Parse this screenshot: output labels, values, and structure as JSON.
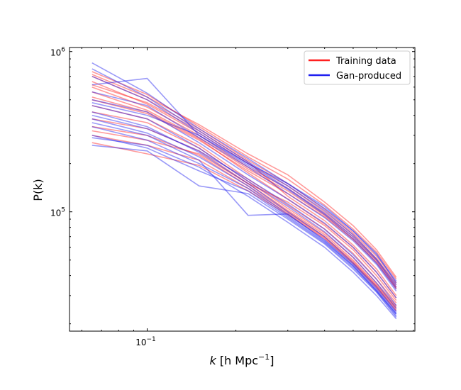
{
  "chart_data": {
    "type": "line",
    "title": "",
    "xlabel": "k [h Mpc^-1]",
    "xlabel_parts": {
      "var": "k",
      "unit_base": " [h Mpc",
      "unit_exp": "−1",
      "unit_close": "]"
    },
    "ylabel": "P(k)",
    "xscale": "log",
    "yscale": "log",
    "xlim": [
      0.0545,
      0.81
    ],
    "ylim": [
      18000,
      1060000
    ],
    "x_ticks": [
      {
        "base": "10",
        "exp": "−1",
        "value": 0.1
      }
    ],
    "y_ticks": [
      {
        "base": "10",
        "exp": "5",
        "value": 100000
      },
      {
        "base": "10",
        "exp": "6",
        "value": 1000000
      }
    ],
    "grid": false,
    "legend": {
      "placement": "top-right",
      "entries": [
        {
          "name": "Training data",
          "color": "#ff2020"
        },
        {
          "name": "Gan-produced",
          "color": "#1f1ff0"
        }
      ]
    },
    "x": [
      0.065,
      0.1,
      0.15,
      0.22,
      0.3,
      0.4,
      0.5,
      0.6,
      0.7
    ],
    "series": [
      {
        "group": "Training data",
        "color": "#ff2020",
        "values": [
          750000,
          540000,
          340000,
          220000,
          160000,
          110000,
          78000,
          56000,
          38000
        ]
      },
      {
        "group": "Training data",
        "color": "#ff2020",
        "values": [
          700000,
          500000,
          330000,
          210000,
          150000,
          104000,
          74000,
          53000,
          36000
        ]
      },
      {
        "group": "Training data",
        "color": "#ff2020",
        "values": [
          650000,
          470000,
          310000,
          200000,
          145000,
          100000,
          72000,
          51000,
          35000
        ]
      },
      {
        "group": "Training data",
        "color": "#ff2020",
        "values": [
          600000,
          450000,
          300000,
          190000,
          140000,
          97000,
          70000,
          50000,
          34000
        ]
      },
      {
        "group": "Training data",
        "color": "#ff2020",
        "values": [
          560000,
          430000,
          290000,
          185000,
          135000,
          95000,
          68000,
          49000,
          33500
        ]
      },
      {
        "group": "Training data",
        "color": "#ff2020",
        "values": [
          500000,
          410000,
          280000,
          180000,
          130000,
          93000,
          67000,
          48000,
          33000
        ]
      },
      {
        "group": "Training data",
        "color": "#ff2020",
        "values": [
          460000,
          380000,
          260000,
          160000,
          110000,
          78000,
          55000,
          38000,
          27000
        ]
      },
      {
        "group": "Training data",
        "color": "#ff2020",
        "values": [
          420000,
          360000,
          250000,
          155000,
          105000,
          74000,
          52000,
          36000,
          26000
        ]
      },
      {
        "group": "Training data",
        "color": "#ff2020",
        "values": [
          380000,
          330000,
          240000,
          150000,
          102000,
          72000,
          50000,
          35000,
          25500
        ]
      },
      {
        "group": "Training data",
        "color": "#ff2020",
        "values": [
          340000,
          300000,
          225000,
          145000,
          100000,
          70000,
          49000,
          34500,
          25000
        ]
      },
      {
        "group": "Training data",
        "color": "#ff2020",
        "values": [
          300000,
          260000,
          210000,
          140000,
          98000,
          69000,
          48000,
          34000,
          24500
        ]
      },
      {
        "group": "Training data",
        "color": "#ff2020",
        "values": [
          270000,
          230000,
          195000,
          135000,
          96000,
          68000,
          47500,
          33500,
          24000
        ]
      },
      {
        "group": "Training data",
        "color": "#ff2020",
        "values": [
          720000,
          520000,
          350000,
          230000,
          170000,
          115000,
          82000,
          58000,
          39000
        ]
      },
      {
        "group": "Training data",
        "color": "#ff2020",
        "values": [
          620000,
          480000,
          320000,
          205000,
          125000,
          88000,
          62000,
          44000,
          30000
        ]
      },
      {
        "group": "Training data",
        "color": "#ff2020",
        "values": [
          520000,
          420000,
          285000,
          175000,
          120000,
          84000,
          60000,
          42000,
          29000
        ]
      },
      {
        "group": "Training data",
        "color": "#ff2020",
        "values": [
          320000,
          280000,
          230000,
          150000,
          115000,
          82000,
          58000,
          40000,
          28000
        ]
      },
      {
        "group": "Gan-produced",
        "color": "#1f1ff0",
        "values": [
          850000,
          550000,
          330000,
          215000,
          150000,
          108000,
          76000,
          54000,
          37000
        ]
      },
      {
        "group": "Gan-produced",
        "color": "#1f1ff0",
        "values": [
          780000,
          520000,
          320000,
          205000,
          145000,
          102000,
          72000,
          51000,
          35000
        ]
      },
      {
        "group": "Gan-produced",
        "color": "#1f1ff0",
        "values": [
          620000,
          680000,
          300000,
          195000,
          138000,
          96000,
          68000,
          48000,
          33000
        ]
      },
      {
        "group": "Gan-produced",
        "color": "#1f1ff0",
        "values": [
          560000,
          460000,
          290000,
          190000,
          130000,
          92000,
          66000,
          47000,
          32000
        ]
      },
      {
        "group": "Gan-produced",
        "color": "#1f1ff0",
        "values": [
          500000,
          420000,
          270000,
          170000,
          120000,
          85000,
          60000,
          42000,
          29000
        ]
      },
      {
        "group": "Gan-produced",
        "color": "#1f1ff0",
        "values": [
          460000,
          380000,
          250000,
          155000,
          108000,
          75000,
          52000,
          36000,
          25000
        ]
      },
      {
        "group": "Gan-produced",
        "color": "#1f1ff0",
        "values": [
          420000,
          340000,
          235000,
          150000,
          100000,
          70000,
          48000,
          34000,
          24000
        ]
      },
      {
        "group": "Gan-produced",
        "color": "#1f1ff0",
        "values": [
          380000,
          310000,
          220000,
          145000,
          96000,
          67000,
          47000,
          33000,
          23500
        ]
      },
      {
        "group": "Gan-produced",
        "color": "#1f1ff0",
        "values": [
          340000,
          280000,
          200000,
          140000,
          94000,
          65000,
          46000,
          32500,
          23000
        ]
      },
      {
        "group": "Gan-produced",
        "color": "#1f1ff0",
        "values": [
          300000,
          250000,
          180000,
          135000,
          92000,
          64000,
          45000,
          32000,
          22500
        ]
      },
      {
        "group": "Gan-produced",
        "color": "#1f1ff0",
        "values": [
          260000,
          240000,
          145000,
          130000,
          90000,
          63000,
          44000,
          31500,
          22000
        ]
      },
      {
        "group": "Gan-produced",
        "color": "#1f1ff0",
        "values": [
          360000,
          300000,
          210000,
          95000,
          97000,
          66000,
          46000,
          32000,
          23000
        ]
      },
      {
        "group": "Gan-produced",
        "color": "#1f1ff0",
        "values": [
          700000,
          500000,
          310000,
          200000,
          150000,
          105000,
          76000,
          55000,
          36000
        ]
      },
      {
        "group": "Gan-produced",
        "color": "#1f1ff0",
        "values": [
          480000,
          400000,
          300000,
          200000,
          140000,
          98000,
          70000,
          50000,
          34000
        ]
      },
      {
        "group": "Gan-produced",
        "color": "#1f1ff0",
        "values": [
          400000,
          330000,
          240000,
          160000,
          112000,
          78000,
          54000,
          38000,
          26000
        ]
      },
      {
        "group": "Gan-produced",
        "color": "#1f1ff0",
        "values": [
          290000,
          260000,
          190000,
          125000,
          86000,
          60000,
          42000,
          30000,
          21500
        ]
      }
    ]
  }
}
